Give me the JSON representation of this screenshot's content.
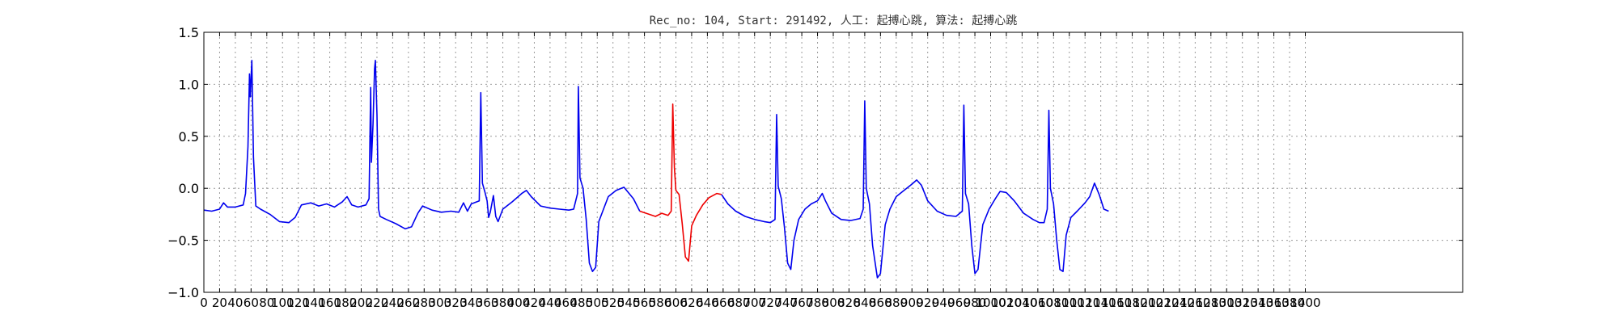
{
  "chart_data": {
    "type": "line",
    "title": "Rec_no: 104, Start: 291492, 人工: 起搏心跳, 算法: 起搏心跳",
    "xlabel": "",
    "ylabel": "",
    "xlim": [
      0,
      1600
    ],
    "ylim": [
      -1.0,
      1.5
    ],
    "grid": true,
    "y_ticks": [
      "1.5",
      "1.0",
      "0.5",
      "0.0",
      "−0.5",
      "−1.0"
    ],
    "y_tick_values": [
      1.5,
      1.0,
      0.5,
      0.0,
      -0.5,
      -1.0
    ],
    "x_tick_values": [
      0,
      20,
      40,
      60,
      80,
      100,
      120,
      140,
      160,
      180,
      200,
      220,
      240,
      260,
      280,
      300,
      320,
      340,
      360,
      380,
      400,
      420,
      440,
      460,
      480,
      500,
      520,
      540,
      560,
      580,
      600,
      620,
      640,
      660,
      680,
      700,
      720,
      740,
      760,
      780,
      800,
      820,
      840,
      860,
      880,
      900,
      920,
      940,
      960,
      980,
      1000,
      1020,
      1040,
      1060,
      1080,
      1100,
      1120,
      1140,
      1160,
      1180,
      1200,
      1220,
      1240,
      1260,
      1280,
      1300,
      1320,
      1340,
      1360,
      1380,
      1400
    ],
    "x_tick_labels": [
      "0",
      "20",
      "40",
      "60",
      "80",
      "100",
      "120",
      "140",
      "160",
      "180",
      "200",
      "220",
      "240",
      "260",
      "280",
      "300",
      "320",
      "340",
      "360",
      "380",
      "400",
      "420",
      "440",
      "460",
      "480",
      "500",
      "520",
      "540",
      "560",
      "580",
      "600",
      "620",
      "640",
      "660",
      "680",
      "700",
      "720",
      "740",
      "760",
      "780",
      "800",
      "820",
      "840",
      "860",
      "880",
      "900",
      "920",
      "940",
      "960",
      "980",
      "1000",
      "1020",
      "1040",
      "1060",
      "1080",
      "1100",
      "1120",
      "1140",
      "1160",
      "1180",
      "1200",
      "1220",
      "1240",
      "1260",
      "1280",
      "1300",
      "1320",
      "1340",
      "1360",
      "1380",
      "1400"
    ],
    "colors": {
      "normal": "#0000ee",
      "highlight": "#ee0000",
      "grid": "#9a9a9a",
      "axes": "#000000"
    },
    "series": [
      {
        "color": "#0000ee",
        "points": [
          [
            0,
            -0.21
          ],
          [
            10,
            -0.22
          ],
          [
            20,
            -0.2
          ],
          [
            25,
            -0.14
          ],
          [
            30,
            -0.18
          ],
          [
            40,
            -0.18
          ],
          [
            50,
            -0.16
          ],
          [
            53,
            -0.05
          ],
          [
            56,
            0.4
          ],
          [
            58,
            1.1
          ],
          [
            59,
            0.88
          ],
          [
            61,
            1.23
          ],
          [
            63,
            0.3
          ],
          [
            66,
            -0.17
          ],
          [
            72,
            -0.2
          ],
          [
            84,
            -0.25
          ],
          [
            96,
            -0.32
          ],
          [
            108,
            -0.33
          ],
          [
            116,
            -0.28
          ],
          [
            124,
            -0.16
          ],
          [
            136,
            -0.14
          ],
          [
            146,
            -0.17
          ],
          [
            156,
            -0.15
          ],
          [
            166,
            -0.18
          ],
          [
            176,
            -0.13
          ],
          [
            182,
            -0.08
          ],
          [
            188,
            -0.16
          ],
          [
            196,
            -0.18
          ],
          [
            206,
            -0.16
          ],
          [
            210,
            -0.1
          ],
          [
            212,
            0.97
          ],
          [
            213,
            0.25
          ],
          [
            215,
            0.62
          ],
          [
            217,
            1.15
          ],
          [
            218,
            1.23
          ],
          [
            220,
            0.7
          ],
          [
            222,
            -0.2
          ],
          [
            224,
            -0.27
          ],
          [
            232,
            -0.3
          ],
          [
            244,
            -0.34
          ],
          [
            256,
            -0.39
          ],
          [
            264,
            -0.37
          ],
          [
            272,
            -0.24
          ],
          [
            278,
            -0.17
          ],
          [
            290,
            -0.21
          ],
          [
            302,
            -0.23
          ],
          [
            314,
            -0.22
          ],
          [
            324,
            -0.23
          ],
          [
            330,
            -0.14
          ],
          [
            335,
            -0.22
          ],
          [
            340,
            -0.15
          ],
          [
            350,
            -0.12
          ],
          [
            352,
            0.92
          ],
          [
            354,
            0.05
          ],
          [
            357,
            -0.03
          ],
          [
            360,
            -0.12
          ],
          [
            362,
            -0.28
          ],
          [
            364,
            -0.23
          ],
          [
            368,
            -0.07
          ],
          [
            371,
            -0.27
          ],
          [
            374,
            -0.32
          ],
          [
            380,
            -0.2
          ],
          [
            392,
            -0.13
          ],
          [
            404,
            -0.05
          ],
          [
            410,
            -0.02
          ],
          [
            416,
            -0.08
          ],
          [
            428,
            -0.17
          ],
          [
            440,
            -0.19
          ],
          [
            452,
            -0.2
          ],
          [
            464,
            -0.21
          ],
          [
            470,
            -0.2
          ],
          [
            475,
            -0.05
          ],
          [
            476,
            0.98
          ],
          [
            478,
            0.1
          ],
          [
            482,
            0.0
          ],
          [
            486,
            -0.3
          ],
          [
            490,
            -0.72
          ],
          [
            494,
            -0.8
          ],
          [
            498,
            -0.76
          ],
          [
            502,
            -0.32
          ],
          [
            508,
            -0.2
          ],
          [
            514,
            -0.08
          ],
          [
            524,
            -0.02
          ],
          [
            534,
            0.01
          ],
          [
            546,
            -0.1
          ],
          [
            554,
            -0.22
          ]
        ]
      },
      {
        "color": "#ee0000",
        "points": [
          [
            554,
            -0.22
          ],
          [
            566,
            -0.25
          ],
          [
            574,
            -0.27
          ],
          [
            582,
            -0.24
          ],
          [
            590,
            -0.26
          ],
          [
            594,
            -0.22
          ],
          [
            596,
            0.81
          ],
          [
            598,
            0.2
          ],
          [
            600,
            -0.02
          ],
          [
            604,
            -0.06
          ],
          [
            608,
            -0.34
          ],
          [
            612,
            -0.66
          ],
          [
            616,
            -0.7
          ],
          [
            620,
            -0.36
          ],
          [
            626,
            -0.26
          ],
          [
            634,
            -0.16
          ],
          [
            642,
            -0.09
          ],
          [
            652,
            -0.05
          ],
          [
            658,
            -0.06
          ]
        ]
      },
      {
        "color": "#0000ee",
        "points": [
          [
            658,
            -0.06
          ],
          [
            666,
            -0.15
          ],
          [
            676,
            -0.22
          ],
          [
            688,
            -0.27
          ],
          [
            700,
            -0.3
          ],
          [
            712,
            -0.32
          ],
          [
            720,
            -0.33
          ],
          [
            726,
            -0.3
          ],
          [
            728,
            0.71
          ],
          [
            730,
            0.02
          ],
          [
            734,
            -0.1
          ],
          [
            738,
            -0.38
          ],
          [
            742,
            -0.72
          ],
          [
            746,
            -0.78
          ],
          [
            750,
            -0.5
          ],
          [
            756,
            -0.3
          ],
          [
            764,
            -0.2
          ],
          [
            772,
            -0.15
          ],
          [
            780,
            -0.12
          ],
          [
            786,
            -0.05
          ],
          [
            790,
            -0.12
          ],
          [
            798,
            -0.24
          ],
          [
            810,
            -0.3
          ],
          [
            822,
            -0.31
          ],
          [
            834,
            -0.29
          ],
          [
            838,
            -0.2
          ],
          [
            840,
            0.84
          ],
          [
            842,
            0.0
          ],
          [
            846,
            -0.15
          ],
          [
            850,
            -0.55
          ],
          [
            856,
            -0.86
          ],
          [
            860,
            -0.82
          ],
          [
            866,
            -0.35
          ],
          [
            872,
            -0.2
          ],
          [
            880,
            -0.08
          ],
          [
            890,
            -0.02
          ],
          [
            900,
            0.04
          ],
          [
            906,
            0.08
          ],
          [
            912,
            0.03
          ],
          [
            920,
            -0.12
          ],
          [
            932,
            -0.22
          ],
          [
            944,
            -0.26
          ],
          [
            956,
            -0.27
          ],
          [
            964,
            -0.22
          ],
          [
            966,
            0.8
          ],
          [
            968,
            -0.05
          ],
          [
            972,
            -0.15
          ],
          [
            976,
            -0.55
          ],
          [
            980,
            -0.82
          ],
          [
            984,
            -0.78
          ],
          [
            990,
            -0.35
          ],
          [
            998,
            -0.2
          ],
          [
            1006,
            -0.1
          ],
          [
            1012,
            -0.03
          ],
          [
            1020,
            -0.04
          ],
          [
            1030,
            -0.12
          ],
          [
            1042,
            -0.24
          ],
          [
            1054,
            -0.3
          ],
          [
            1062,
            -0.33
          ],
          [
            1068,
            -0.33
          ],
          [
            1072,
            -0.2
          ],
          [
            1074,
            0.75
          ],
          [
            1076,
            0.0
          ],
          [
            1080,
            -0.15
          ],
          [
            1084,
            -0.5
          ],
          [
            1088,
            -0.78
          ],
          [
            1092,
            -0.8
          ],
          [
            1096,
            -0.45
          ],
          [
            1102,
            -0.28
          ],
          [
            1110,
            -0.22
          ],
          [
            1120,
            -0.14
          ],
          [
            1126,
            -0.08
          ],
          [
            1132,
            0.05
          ],
          [
            1138,
            -0.06
          ],
          [
            1144,
            -0.2
          ],
          [
            1150,
            -0.22
          ]
        ]
      }
    ]
  }
}
